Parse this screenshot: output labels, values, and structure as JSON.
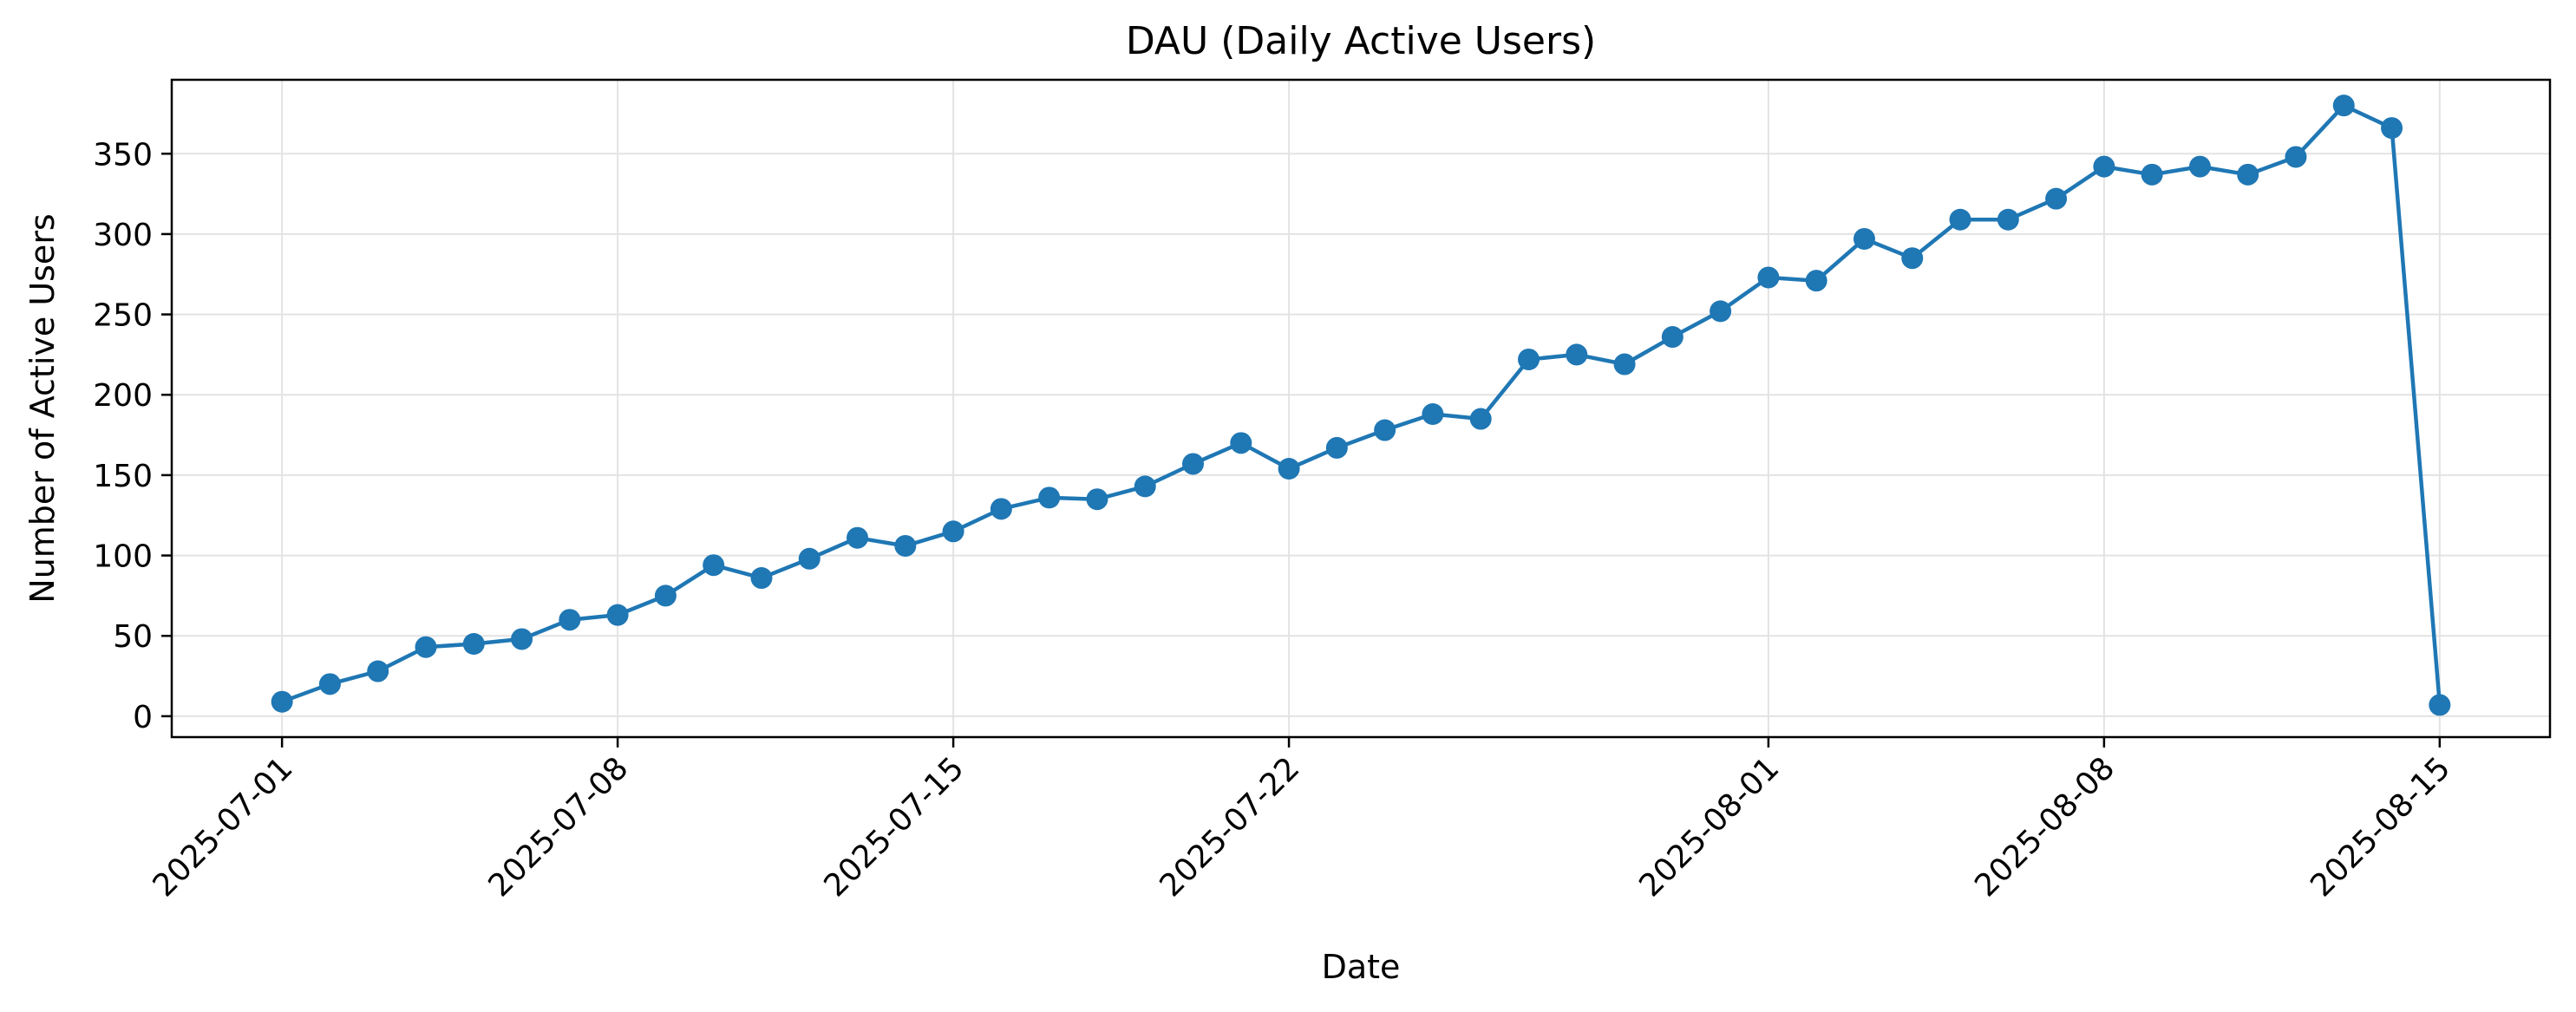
{
  "chart_data": {
    "type": "line",
    "title": "DAU (Daily Active Users)",
    "xlabel": "Date",
    "ylabel": "Number of Active Users",
    "x": [
      "2025-07-01",
      "2025-07-02",
      "2025-07-03",
      "2025-07-04",
      "2025-07-05",
      "2025-07-06",
      "2025-07-07",
      "2025-07-08",
      "2025-07-09",
      "2025-07-10",
      "2025-07-11",
      "2025-07-12",
      "2025-07-13",
      "2025-07-14",
      "2025-07-15",
      "2025-07-16",
      "2025-07-17",
      "2025-07-18",
      "2025-07-19",
      "2025-07-20",
      "2025-07-21",
      "2025-07-22",
      "2025-07-23",
      "2025-07-24",
      "2025-07-25",
      "2025-07-26",
      "2025-07-27",
      "2025-07-28",
      "2025-07-29",
      "2025-07-30",
      "2025-07-31",
      "2025-08-01",
      "2025-08-02",
      "2025-08-03",
      "2025-08-04",
      "2025-08-05",
      "2025-08-06",
      "2025-08-07",
      "2025-08-08",
      "2025-08-09",
      "2025-08-10",
      "2025-08-11",
      "2025-08-12",
      "2025-08-13",
      "2025-08-14",
      "2025-08-15"
    ],
    "series": [
      {
        "values": [
          9,
          20,
          28,
          43,
          45,
          48,
          60,
          63,
          75,
          94,
          86,
          98,
          111,
          106,
          115,
          129,
          136,
          135,
          143,
          157,
          170,
          154,
          167,
          178,
          188,
          185,
          222,
          225,
          219,
          236,
          252,
          273,
          271,
          297,
          285,
          309,
          309,
          322,
          342,
          337,
          342,
          337,
          348,
          380,
          366,
          7
        ]
      }
    ],
    "x_ticks": [
      "2025-07-01",
      "2025-07-08",
      "2025-07-15",
      "2025-07-22",
      "2025-08-01",
      "2025-08-08",
      "2025-08-15"
    ],
    "y_ticks": [
      0,
      50,
      100,
      150,
      200,
      250,
      300,
      350
    ],
    "ylim": [
      -13,
      396
    ],
    "grid": true,
    "colors": {
      "line": "#1f77b4",
      "grid": "#e3e3e3",
      "axis": "#000000"
    }
  }
}
